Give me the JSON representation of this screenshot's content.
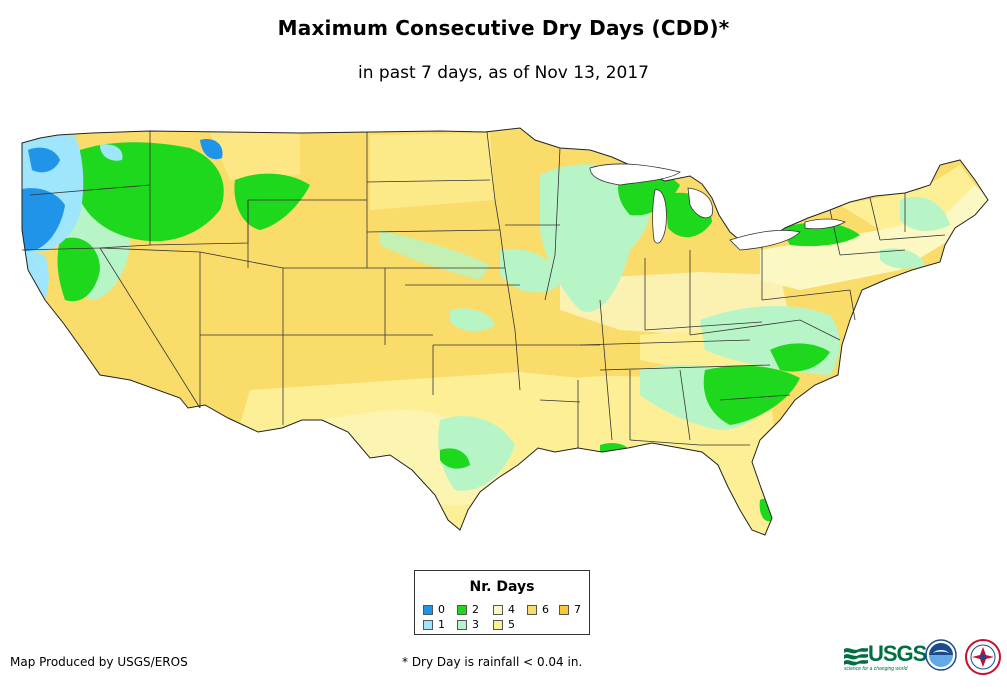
{
  "header": {
    "title": "Maximum Consecutive Dry Days (CDD)*",
    "subtitle": "in past 7 days, as of Nov 13, 2017"
  },
  "legend": {
    "title": "Nr. Days",
    "items": [
      {
        "label": "0",
        "color": "#1f94e8"
      },
      {
        "label": "1",
        "color": "#9fe5fb"
      },
      {
        "label": "2",
        "color": "#1ed81e"
      },
      {
        "label": "3",
        "color": "#b7f5c7"
      },
      {
        "label": "4",
        "color": "#fbf8c4"
      },
      {
        "label": "5",
        "color": "#fdef96"
      },
      {
        "label": "6",
        "color": "#f9dc6a"
      },
      {
        "label": "7",
        "color": "#f8c83a"
      }
    ]
  },
  "footer": {
    "credit": "Map Produced by USGS/EROS",
    "footnote": "* Dry Day is rainfall < 0.04 in."
  },
  "logos": {
    "usgs": "USGS",
    "usgs_tagline": "science for a changing world",
    "noaa": "noaa",
    "nws": "National Weather Service"
  }
}
